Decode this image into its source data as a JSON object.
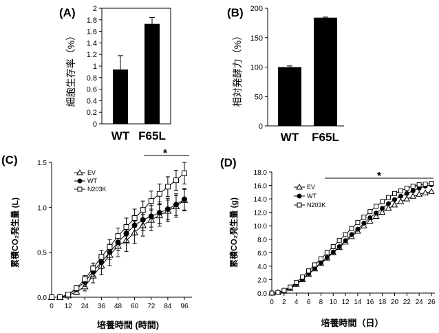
{
  "chart_data": [
    {
      "panel": "(A)",
      "type": "bar",
      "categories": [
        "WT",
        "F65L"
      ],
      "values": [
        0.94,
        1.73
      ],
      "errors": [
        0.24,
        0.11
      ],
      "ylabel": "細胞生存率（%）",
      "ylim": [
        0,
        2
      ],
      "yticks": [
        "0",
        "0.2",
        "0.4",
        "0.6",
        "0.8",
        "1",
        "1.2",
        "1.4",
        "1.6",
        "1.8",
        "2"
      ]
    },
    {
      "panel": "(B)",
      "type": "bar",
      "categories": [
        "WT",
        "F65L"
      ],
      "values": [
        100,
        184
      ],
      "errors": [
        2,
        1
      ],
      "ylabel": "相対発酵力（%）",
      "ylim": [
        0,
        200
      ],
      "yticks": [
        "0",
        "50",
        "100",
        "150",
        "200"
      ]
    },
    {
      "panel": "(C)",
      "type": "line",
      "xlabel": "培養時間 (時間)",
      "ylabel": "累積CO₂発生量 (L)",
      "xlim": [
        0,
        96
      ],
      "ylim": [
        0,
        1.5
      ],
      "xticks": [
        "0",
        "12",
        "24",
        "36",
        "48",
        "60",
        "72",
        "84",
        "96"
      ],
      "yticks": [
        "0.0",
        "0.5",
        "1.0",
        "1.5"
      ],
      "significance": "*",
      "x": [
        0,
        6,
        12,
        18,
        24,
        30,
        36,
        42,
        48,
        54,
        60,
        66,
        72,
        78,
        84,
        90,
        96
      ],
      "series": [
        {
          "name": "EV",
          "marker": "triangle",
          "values": [
            0,
            0,
            0.02,
            0.06,
            0.12,
            0.24,
            0.35,
            0.47,
            0.57,
            0.63,
            0.72,
            0.8,
            0.86,
            0.91,
            0.96,
            1.01,
            1.08
          ],
          "errors": [
            0,
            0,
            0.02,
            0.03,
            0.05,
            0.08,
            0.1,
            0.12,
            0.12,
            0.12,
            0.12,
            0.12,
            0.12,
            0.12,
            0.12,
            0.12,
            0.12
          ]
        },
        {
          "name": "WT",
          "marker": "circle",
          "values": [
            0,
            0,
            0.03,
            0.09,
            0.17,
            0.29,
            0.39,
            0.5,
            0.61,
            0.71,
            0.8,
            0.86,
            0.9,
            0.94,
            0.98,
            1.03,
            1.09
          ],
          "errors": [
            0,
            0,
            0.02,
            0.03,
            0.05,
            0.06,
            0.07,
            0.08,
            0.09,
            0.1,
            0.11,
            0.12,
            0.12,
            0.12,
            0.12,
            0.12,
            0.12
          ]
        },
        {
          "name": "N203K",
          "marker": "square",
          "values": [
            0,
            0,
            0.03,
            0.1,
            0.2,
            0.32,
            0.45,
            0.56,
            0.68,
            0.78,
            0.88,
            0.97,
            1.07,
            1.15,
            1.23,
            1.3,
            1.38
          ],
          "errors": [
            0,
            0,
            0.02,
            0.03,
            0.04,
            0.06,
            0.07,
            0.08,
            0.09,
            0.1,
            0.1,
            0.1,
            0.11,
            0.11,
            0.11,
            0.11,
            0.12
          ]
        }
      ]
    },
    {
      "panel": "(D)",
      "type": "line",
      "xlabel": "培養時間（日）",
      "ylabel": "累積CO₂発生量 (g)",
      "xlim": [
        0,
        26
      ],
      "ylim": [
        0,
        18
      ],
      "xticks": [
        "0",
        "2",
        "4",
        "6",
        "8",
        "10",
        "12",
        "14",
        "16",
        "18",
        "20",
        "22",
        "24",
        "26"
      ],
      "yticks": [
        "0.0",
        "2.0",
        "4.0",
        "6.0",
        "8.0",
        "10.0",
        "12.0",
        "14.0",
        "16.0",
        "18.0"
      ],
      "significance": "*",
      "x": [
        0,
        1,
        2,
        3,
        4,
        5,
        6,
        7,
        8,
        9,
        10,
        11,
        12,
        13,
        14,
        15,
        16,
        17,
        18,
        19,
        20,
        21,
        22,
        23,
        24,
        25,
        26
      ],
      "series": [
        {
          "name": "EV",
          "marker": "triangle",
          "values": [
            0,
            0.1,
            0.3,
            0.7,
            1.3,
            2.0,
            2.8,
            3.6,
            4.4,
            5.2,
            6.0,
            6.8,
            7.6,
            8.4,
            9.2,
            10.0,
            10.7,
            11.4,
            12.0,
            12.6,
            13.1,
            13.6,
            14.0,
            14.4,
            14.7,
            14.9,
            15.1
          ]
        },
        {
          "name": "WT",
          "marker": "circle",
          "values": [
            0,
            0.1,
            0.3,
            0.8,
            1.4,
            2.1,
            2.9,
            3.7,
            4.5,
            5.3,
            6.1,
            6.9,
            7.8,
            8.7,
            9.5,
            10.4,
            11.2,
            11.9,
            12.6,
            13.3,
            13.9,
            14.4,
            14.8,
            15.2,
            15.6,
            15.9,
            16.1
          ]
        },
        {
          "name": "N203K",
          "marker": "square",
          "values": [
            0,
            0.1,
            0.4,
            0.9,
            1.6,
            2.4,
            3.3,
            4.2,
            5.1,
            6.0,
            6.9,
            7.8,
            8.7,
            9.6,
            10.5,
            11.3,
            12.1,
            12.9,
            13.6,
            14.2,
            14.8,
            15.2,
            15.6,
            15.9,
            16.1,
            16.2,
            16.3
          ]
        }
      ]
    }
  ]
}
